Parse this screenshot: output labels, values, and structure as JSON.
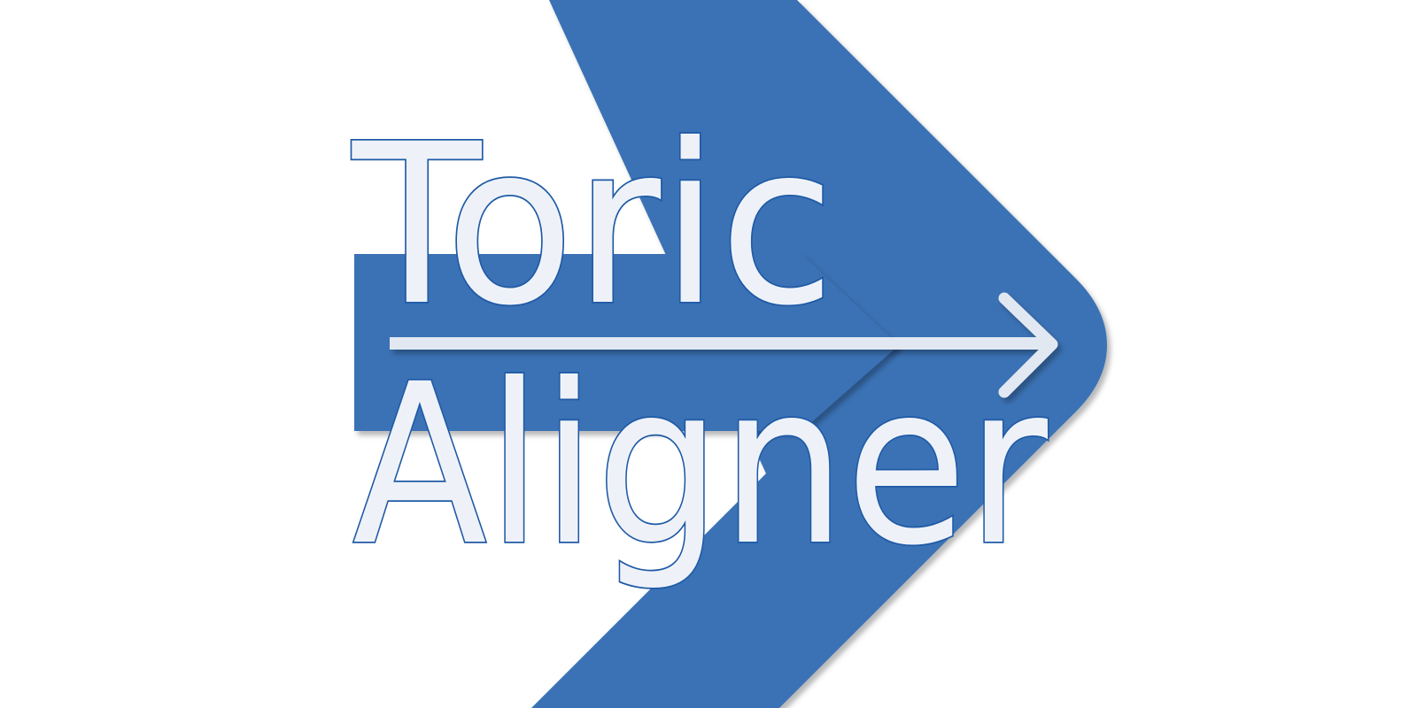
{
  "logo": {
    "word_line_1": "Toric",
    "word_line_2": "Aligner",
    "colors": {
      "brand_blue": "#3a72b5",
      "letter_fill": "#eef2f8",
      "letter_outline": "#1f5aa6",
      "arrow_line": "#e2e8f2",
      "background": "#ffffff"
    },
    "icons": [
      "chevron-shape",
      "right-arrow-icon"
    ]
  }
}
